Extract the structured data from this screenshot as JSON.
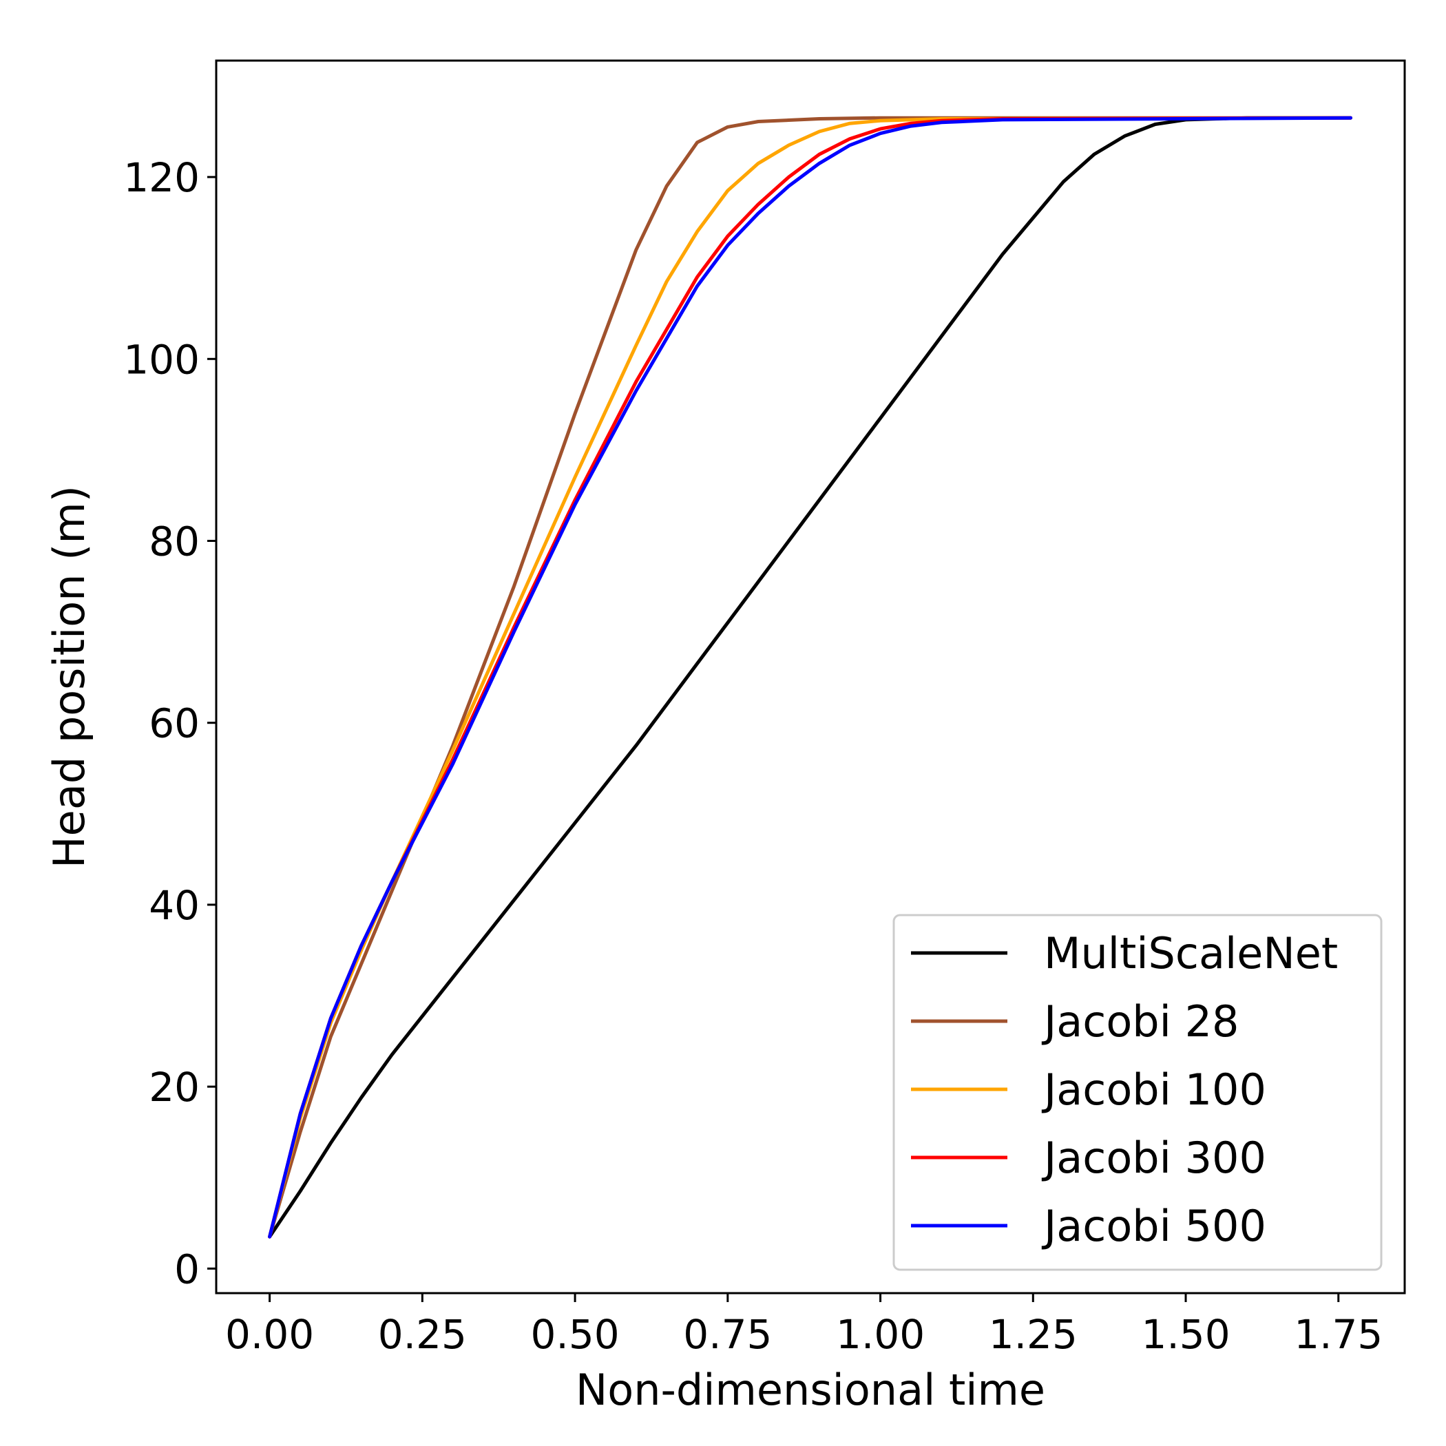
{
  "chart_data": {
    "type": "line",
    "title": "",
    "xlabel": "Non-dimensional time",
    "ylabel": "Head position (m)",
    "xlim": [
      -0.0875,
      1.8585
    ],
    "ylim": [
      -2.7,
      132.8
    ],
    "xticks": [
      0.0,
      0.25,
      0.5,
      0.75,
      1.0,
      1.25,
      1.5,
      1.75
    ],
    "xtick_labels": [
      "0.00",
      "0.25",
      "0.50",
      "0.75",
      "1.00",
      "1.25",
      "1.50",
      "1.75"
    ],
    "yticks": [
      0,
      20,
      40,
      60,
      80,
      100,
      120
    ],
    "ytick_labels": [
      "0",
      "20",
      "40",
      "60",
      "80",
      "100",
      "120"
    ],
    "grid": false,
    "legend_position": "lower-right",
    "series": [
      {
        "name": "MultiScaleNet",
        "color": "#000000",
        "x": [
          0.0,
          0.05,
          0.1,
          0.15,
          0.2,
          0.3,
          0.4,
          0.5,
          0.6,
          0.7,
          0.8,
          0.9,
          1.0,
          1.1,
          1.2,
          1.3,
          1.35,
          1.4,
          1.45,
          1.5,
          1.6,
          1.77
        ],
        "y": [
          3.5,
          8.5,
          13.8,
          18.8,
          23.5,
          32.0,
          40.5,
          49.0,
          57.5,
          66.5,
          75.5,
          84.5,
          93.5,
          102.5,
          111.5,
          119.5,
          122.5,
          124.5,
          125.8,
          126.3,
          126.5,
          126.5
        ]
      },
      {
        "name": "Jacobi 28",
        "color": "#a0522d",
        "x": [
          0.0,
          0.05,
          0.1,
          0.15,
          0.2,
          0.3,
          0.4,
          0.5,
          0.55,
          0.6,
          0.65,
          0.7,
          0.75,
          0.8,
          0.9,
          1.0,
          1.77
        ],
        "y": [
          3.5,
          15.0,
          25.5,
          33.5,
          41.5,
          57.5,
          75.0,
          94.0,
          103.0,
          112.0,
          119.0,
          123.8,
          125.5,
          126.1,
          126.4,
          126.5,
          126.5
        ]
      },
      {
        "name": "Jacobi 100",
        "color": "#ffa500",
        "x": [
          0.0,
          0.05,
          0.1,
          0.15,
          0.2,
          0.3,
          0.4,
          0.5,
          0.6,
          0.65,
          0.7,
          0.75,
          0.8,
          0.85,
          0.9,
          0.95,
          1.0,
          1.1,
          1.77
        ],
        "y": [
          3.5,
          16.5,
          27.0,
          35.0,
          42.5,
          57.0,
          72.0,
          87.0,
          101.5,
          108.5,
          114.0,
          118.5,
          121.5,
          123.5,
          125.0,
          125.9,
          126.2,
          126.4,
          126.5
        ]
      },
      {
        "name": "Jacobi 300",
        "color": "#ff0000",
        "x": [
          0.0,
          0.05,
          0.1,
          0.15,
          0.2,
          0.3,
          0.4,
          0.5,
          0.6,
          0.7,
          0.75,
          0.8,
          0.85,
          0.9,
          0.95,
          1.0,
          1.05,
          1.1,
          1.2,
          1.77
        ],
        "y": [
          3.5,
          17.0,
          27.5,
          35.5,
          42.5,
          56.0,
          70.5,
          84.5,
          97.5,
          109.0,
          113.5,
          117.0,
          120.0,
          122.5,
          124.2,
          125.3,
          125.9,
          126.2,
          126.4,
          126.5
        ]
      },
      {
        "name": "Jacobi 500",
        "color": "#0000ff",
        "x": [
          0.0,
          0.05,
          0.1,
          0.15,
          0.2,
          0.3,
          0.4,
          0.5,
          0.6,
          0.7,
          0.75,
          0.8,
          0.85,
          0.9,
          0.95,
          1.0,
          1.05,
          1.1,
          1.2,
          1.77
        ],
        "y": [
          3.5,
          17.0,
          27.5,
          35.5,
          42.5,
          55.5,
          70.0,
          84.0,
          96.5,
          108.0,
          112.5,
          116.0,
          119.0,
          121.5,
          123.5,
          124.8,
          125.6,
          126.0,
          126.3,
          126.5
        ]
      }
    ]
  }
}
